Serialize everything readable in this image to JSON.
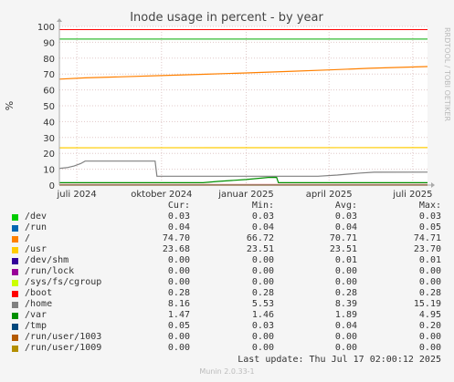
{
  "chart_data": {
    "type": "line",
    "title": "Inode usage in percent - by year",
    "ylabel": "%",
    "side_label": "RRDTOOL / TOBI OETIKER",
    "ylim": [
      0,
      100
    ],
    "yticks": [
      0,
      10,
      20,
      30,
      40,
      50,
      60,
      70,
      80,
      90,
      100
    ],
    "xlim": [
      "2024-06-12",
      "2025-07-17"
    ],
    "xticks": [
      {
        "x": "2024-07-01",
        "label": "juli 2024"
      },
      {
        "x": "2024-10-01",
        "label": "oktober 2024"
      },
      {
        "x": "2025-01-01",
        "label": "januar 2025"
      },
      {
        "x": "2025-04-01",
        "label": "april 2025"
      },
      {
        "x": "2025-07-01",
        "label": "juli 2025"
      }
    ],
    "grid": true,
    "columns": [
      "Cur:",
      "Min:",
      "Avg:",
      "Max:"
    ],
    "series": [
      {
        "name": "/dev",
        "color": "#00cc00",
        "cur": "0.03",
        "min": "0.03",
        "avg": "0.03",
        "max": "0.03",
        "points": [
          [
            "2024-06-12",
            0.03
          ],
          [
            "2025-07-17",
            0.03
          ]
        ]
      },
      {
        "name": "/run",
        "color": "#0066b3",
        "cur": "0.04",
        "min": "0.04",
        "avg": "0.04",
        "max": "0.05",
        "points": [
          [
            "2024-06-12",
            0.04
          ],
          [
            "2025-07-17",
            0.04
          ]
        ]
      },
      {
        "name": "/",
        "color": "#ff8000",
        "cur": "74.70",
        "min": "66.72",
        "avg": "70.71",
        "max": "74.71",
        "points": [
          [
            "2024-06-12",
            66.8
          ],
          [
            "2024-07-10",
            67.6
          ],
          [
            "2024-08-20",
            68.3
          ],
          [
            "2024-10-01",
            69.0
          ],
          [
            "2024-11-15",
            69.8
          ],
          [
            "2025-01-01",
            70.7
          ],
          [
            "2025-02-15",
            71.6
          ],
          [
            "2025-04-01",
            72.6
          ],
          [
            "2025-05-15",
            73.6
          ],
          [
            "2025-07-17",
            74.7
          ]
        ]
      },
      {
        "name": "/usr",
        "color": "#ffcc00",
        "cur": "23.68",
        "min": "23.51",
        "avg": "23.51",
        "max": "23.70",
        "points": [
          [
            "2024-06-12",
            23.5
          ],
          [
            "2025-07-17",
            23.6
          ]
        ]
      },
      {
        "name": "/dev/shm",
        "color": "#330099",
        "cur": "0.00",
        "min": "0.00",
        "avg": "0.01",
        "max": "0.01",
        "points": [
          [
            "2024-06-12",
            0.0
          ],
          [
            "2025-07-17",
            0.0
          ]
        ]
      },
      {
        "name": "/run/lock",
        "color": "#990099",
        "cur": "0.00",
        "min": "0.00",
        "avg": "0.00",
        "max": "0.00",
        "points": [
          [
            "2024-06-12",
            0.0
          ],
          [
            "2025-07-17",
            0.0
          ]
        ]
      },
      {
        "name": "/sys/fs/cgroup",
        "color": "#ccff00",
        "cur": "0.00",
        "min": "0.00",
        "avg": "0.00",
        "max": "0.00",
        "points": [
          [
            "2024-06-12",
            0.0
          ],
          [
            "2025-07-17",
            0.0
          ]
        ]
      },
      {
        "name": "/boot",
        "color": "#ff0000",
        "cur": "0.28",
        "min": "0.28",
        "avg": "0.28",
        "max": "0.28",
        "points": [
          [
            "2024-06-12",
            0.28
          ],
          [
            "2025-07-17",
            0.28
          ]
        ]
      },
      {
        "name": "/home",
        "color": "#808080",
        "cur": "8.16",
        "min": "5.53",
        "avg": "8.39",
        "max": "15.19",
        "points": [
          [
            "2024-06-12",
            10.5
          ],
          [
            "2024-06-20",
            11.0
          ],
          [
            "2024-06-28",
            12.0
          ],
          [
            "2024-07-05",
            13.5
          ],
          [
            "2024-07-10",
            15.1
          ],
          [
            "2024-09-24",
            15.1
          ],
          [
            "2024-09-26",
            5.6
          ],
          [
            "2025-03-20",
            5.6
          ],
          [
            "2025-04-10",
            6.3
          ],
          [
            "2025-05-05",
            7.6
          ],
          [
            "2025-05-20",
            8.1
          ],
          [
            "2025-07-17",
            8.16
          ]
        ]
      },
      {
        "name": "/var",
        "color": "#008f00",
        "cur": "1.47",
        "min": "1.46",
        "avg": "1.89",
        "max": "4.95",
        "points": [
          [
            "2024-06-12",
            1.5
          ],
          [
            "2024-11-15",
            1.5
          ],
          [
            "2024-12-01",
            2.3
          ],
          [
            "2025-01-01",
            3.5
          ],
          [
            "2025-01-25",
            4.8
          ],
          [
            "2025-02-03",
            4.9
          ],
          [
            "2025-02-05",
            1.5
          ],
          [
            "2025-07-17",
            1.47
          ]
        ]
      },
      {
        "name": "/tmp",
        "color": "#00487d",
        "cur": "0.05",
        "min": "0.03",
        "avg": "0.04",
        "max": "0.20",
        "points": [
          [
            "2024-06-12",
            0.05
          ],
          [
            "2025-07-17",
            0.05
          ]
        ]
      },
      {
        "name": "/run/user/1003",
        "color": "#b35a00",
        "cur": "0.00",
        "min": "0.00",
        "avg": "0.00",
        "max": "0.00",
        "points": [
          [
            "2024-06-12",
            0.0
          ],
          [
            "2025-07-17",
            0.0
          ]
        ]
      },
      {
        "name": "/run/user/1009",
        "color": "#b38f00",
        "cur": "0.00",
        "min": "0.00",
        "avg": "0.00",
        "max": "0.00",
        "points": [
          [
            "2024-06-12",
            0.0
          ],
          [
            "2025-07-17",
            0.0
          ]
        ]
      }
    ],
    "warning_line": {
      "value": 92,
      "color": "#00aa00"
    },
    "critical_line": {
      "value": 98,
      "color": "#ff0000"
    }
  },
  "last_update": "Last update: Thu Jul 17 02:00:12 2025",
  "footer": "Munin 2.0.33-1"
}
